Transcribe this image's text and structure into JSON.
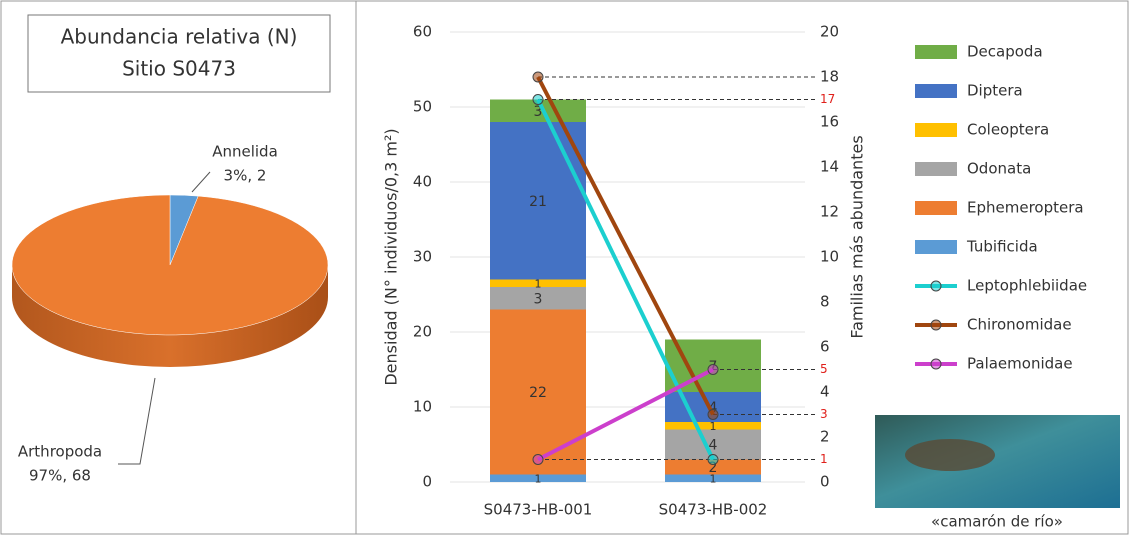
{
  "chart_data": [
    {
      "type": "pie",
      "title": "Abundancia relativa (N)",
      "subtitle": "Sitio S0473",
      "categories": [
        "Annelida",
        "Arthropoda"
      ],
      "values": [
        2,
        68
      ],
      "value_labels": [
        "3%, 2",
        "97%, 68"
      ],
      "colors": [
        "#5b9bd5",
        "#ed7d31"
      ]
    },
    {
      "type": "bar",
      "stacked": true,
      "categories": [
        "S0473-HB-001",
        "S0473-HB-002"
      ],
      "ylabel": "Densidad (N° individuos/0,3 m²)",
      "y2label": "Familias más abundantes",
      "ylim": [
        0,
        60
      ],
      "yticks": [
        0,
        10,
        20,
        30,
        40,
        50,
        60
      ],
      "y2lim": [
        0,
        20
      ],
      "y2ticks": [
        0,
        2,
        4,
        6,
        8,
        10,
        12,
        14,
        16,
        18,
        20
      ],
      "grid": true,
      "legend": "right",
      "series": [
        {
          "name": "Decapoda",
          "color": "#70ad47",
          "values": [
            3,
            7
          ]
        },
        {
          "name": "Diptera",
          "color": "#4472c4",
          "values": [
            21,
            4
          ]
        },
        {
          "name": "Coleoptera",
          "color": "#ffc000",
          "values": [
            1,
            1
          ]
        },
        {
          "name": "Odonata",
          "color": "#a5a5a5",
          "values": [
            3,
            4
          ]
        },
        {
          "name": "Ephemeroptera",
          "color": "#ed7d31",
          "values": [
            22,
            2
          ]
        },
        {
          "name": "Tubificida",
          "color": "#5b9bd5",
          "values": [
            1,
            1
          ]
        },
        {
          "name": "Leptophlebiidae",
          "type": "line",
          "axis": "y2",
          "color": "#1ccfcf",
          "values": [
            17,
            1
          ]
        },
        {
          "name": "Chironomidae",
          "type": "line",
          "axis": "y2",
          "color": "#a0460f",
          "values": [
            18,
            3
          ]
        },
        {
          "name": "Palaemonidae",
          "type": "line",
          "axis": "y2",
          "color": "#cc3fcc",
          "values": [
            1,
            5
          ]
        }
      ],
      "annotations": [
        17,
        5,
        3,
        1
      ],
      "image_caption": "«camarón de río»"
    }
  ]
}
